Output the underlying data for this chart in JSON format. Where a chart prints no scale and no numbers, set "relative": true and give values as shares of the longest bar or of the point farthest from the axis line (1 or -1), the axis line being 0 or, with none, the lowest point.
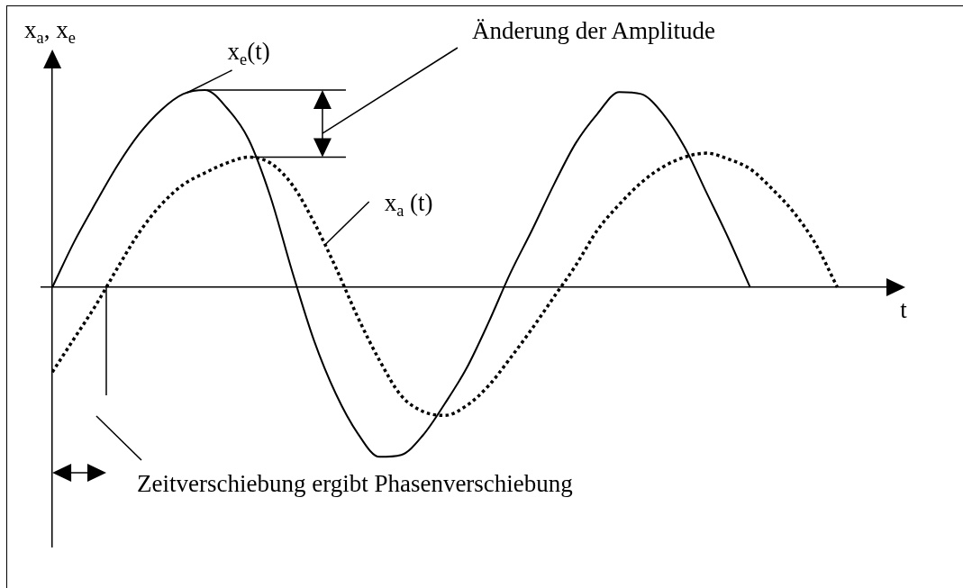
{
  "chart_data": {
    "type": "line",
    "xlabel": "t",
    "ylabel": "x$_{a}$, x$_{e}$",
    "relative": true,
    "categories": [
      null,
      null,
      null,
      null,
      null,
      null,
      null,
      null,
      null,
      null,
      null,
      null,
      null,
      null,
      null,
      null,
      null,
      null,
      null,
      null,
      null,
      null,
      null,
      null,
      null,
      null,
      null,
      null,
      null,
      null,
      null,
      null,
      null,
      null,
      null,
      null,
      null,
      null,
      null
    ],
    "series": [
      {
        "name": "x$_{e}$(t)",
        "color": "#000000",
        "line_style": "solid",
        "values": [
          0,
          0.23,
          0.43,
          0.62,
          0.78,
          0.9,
          0.98,
          1,
          0.91,
          0.75,
          0.46,
          0.08,
          -0.27,
          -0.54,
          -0.74,
          -0.86,
          -0.85,
          -0.75,
          -0.59,
          -0.41,
          -0.18,
          0.07,
          0.29,
          0.52,
          0.73,
          0.88,
          0.99,
          0.98,
          0.88,
          0.71,
          0.48,
          0.25,
          0,
          null,
          null,
          null,
          null,
          null,
          null
        ]
      },
      {
        "name": "x$_{a}$ (t)",
        "color": "#000000",
        "line_style": "dotted",
        "values": [
          -0.43,
          -0.26,
          -0.09,
          0.1,
          0.28,
          0.42,
          0.52,
          0.58,
          0.63,
          0.66,
          0.63,
          0.52,
          0.33,
          0.1,
          -0.15,
          -0.37,
          -0.55,
          -0.63,
          -0.65,
          -0.6,
          -0.5,
          -0.36,
          -0.21,
          -0.05,
          0.11,
          0.29,
          0.42,
          0.53,
          0.61,
          0.66,
          0.68,
          0.65,
          0.6,
          0.5,
          0.38,
          0.22,
          0,
          null,
          null
        ]
      }
    ],
    "annotations": [
      "Änderung der Amplitude",
      "Zeitverschiebung ergibt Phasenverschiebung"
    ]
  }
}
